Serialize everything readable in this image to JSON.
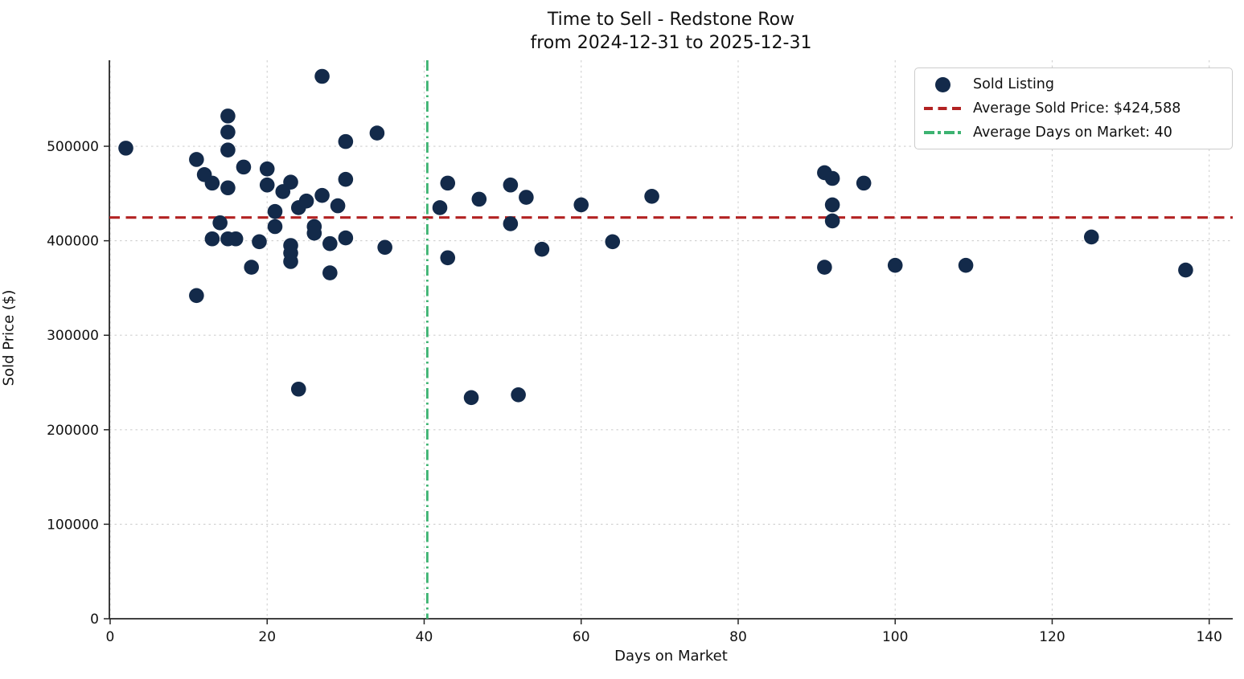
{
  "chart_data": {
    "type": "scatter",
    "title": "Time to Sell - Redstone Row",
    "subtitle": "from 2024-12-31 to 2025-12-31",
    "xlabel": "Days on Market",
    "ylabel": "Sold Price ($)",
    "xlim": [
      -0.1,
      143.0
    ],
    "ylim": [
      0,
      591000
    ],
    "x_ticks": [
      0,
      20,
      40,
      60,
      80,
      100,
      120,
      140
    ],
    "y_ticks": [
      0,
      100000,
      200000,
      300000,
      400000,
      500000
    ],
    "grid": true,
    "grid_style": "dashed",
    "legend_position": "upper right",
    "colors": {
      "marker": "#132a4a",
      "avg_price_line": "#b22222",
      "avg_days_line": "#3cb371",
      "gridline": "#d0d0d0",
      "axis": "#262626",
      "text": "#111111"
    },
    "series": [
      {
        "name": "Sold Listing",
        "points": [
          [
            2,
            498000
          ],
          [
            11,
            486000
          ],
          [
            11,
            342000
          ],
          [
            12,
            470000
          ],
          [
            13,
            461000
          ],
          [
            13,
            402000
          ],
          [
            14,
            419000
          ],
          [
            15,
            532000
          ],
          [
            15,
            515000
          ],
          [
            15,
            496000
          ],
          [
            15,
            456000
          ],
          [
            15,
            402000
          ],
          [
            16,
            402000
          ],
          [
            17,
            478000
          ],
          [
            18,
            372000
          ],
          [
            19,
            399000
          ],
          [
            20,
            476000
          ],
          [
            20,
            459000
          ],
          [
            21,
            431000
          ],
          [
            21,
            415000
          ],
          [
            22,
            452000
          ],
          [
            23,
            462000
          ],
          [
            23,
            395000
          ],
          [
            23,
            387000
          ],
          [
            23,
            378000
          ],
          [
            24,
            435000
          ],
          [
            24,
            243000
          ],
          [
            25,
            442000
          ],
          [
            26,
            415000
          ],
          [
            26,
            408000
          ],
          [
            27,
            574000
          ],
          [
            27,
            448000
          ],
          [
            28,
            397000
          ],
          [
            28,
            366000
          ],
          [
            29,
            437000
          ],
          [
            30,
            505000
          ],
          [
            30,
            465000
          ],
          [
            30,
            403000
          ],
          [
            34,
            514000
          ],
          [
            35,
            393000
          ],
          [
            42,
            435000
          ],
          [
            43,
            461000
          ],
          [
            43,
            382000
          ],
          [
            46,
            234000
          ],
          [
            47,
            444000
          ],
          [
            51,
            459000
          ],
          [
            51,
            418000
          ],
          [
            52,
            237000
          ],
          [
            53,
            446000
          ],
          [
            55,
            391000
          ],
          [
            60,
            438000
          ],
          [
            64,
            399000
          ],
          [
            69,
            447000
          ],
          [
            91,
            472000
          ],
          [
            91,
            372000
          ],
          [
            92,
            466000
          ],
          [
            92,
            438000
          ],
          [
            92,
            421000
          ],
          [
            96,
            461000
          ],
          [
            100,
            374000
          ],
          [
            109,
            374000
          ],
          [
            125,
            404000
          ],
          [
            137,
            369000
          ]
        ]
      }
    ],
    "reference_lines": [
      {
        "name": "average-sold-price",
        "orientation": "horizontal",
        "value": 424588,
        "style": "dashed"
      },
      {
        "name": "average-days-on-market",
        "orientation": "vertical",
        "value": 40.4,
        "style": "dashdot"
      }
    ],
    "legend": {
      "items": [
        {
          "label": "Sold Listing",
          "marker": "dot",
          "color": "#132a4a"
        },
        {
          "label": "Average Sold Price: $424,588",
          "marker": "dashed",
          "color": "#b22222"
        },
        {
          "label": "Average Days on Market: 40",
          "marker": "dashdot",
          "color": "#3cb371"
        }
      ]
    }
  }
}
